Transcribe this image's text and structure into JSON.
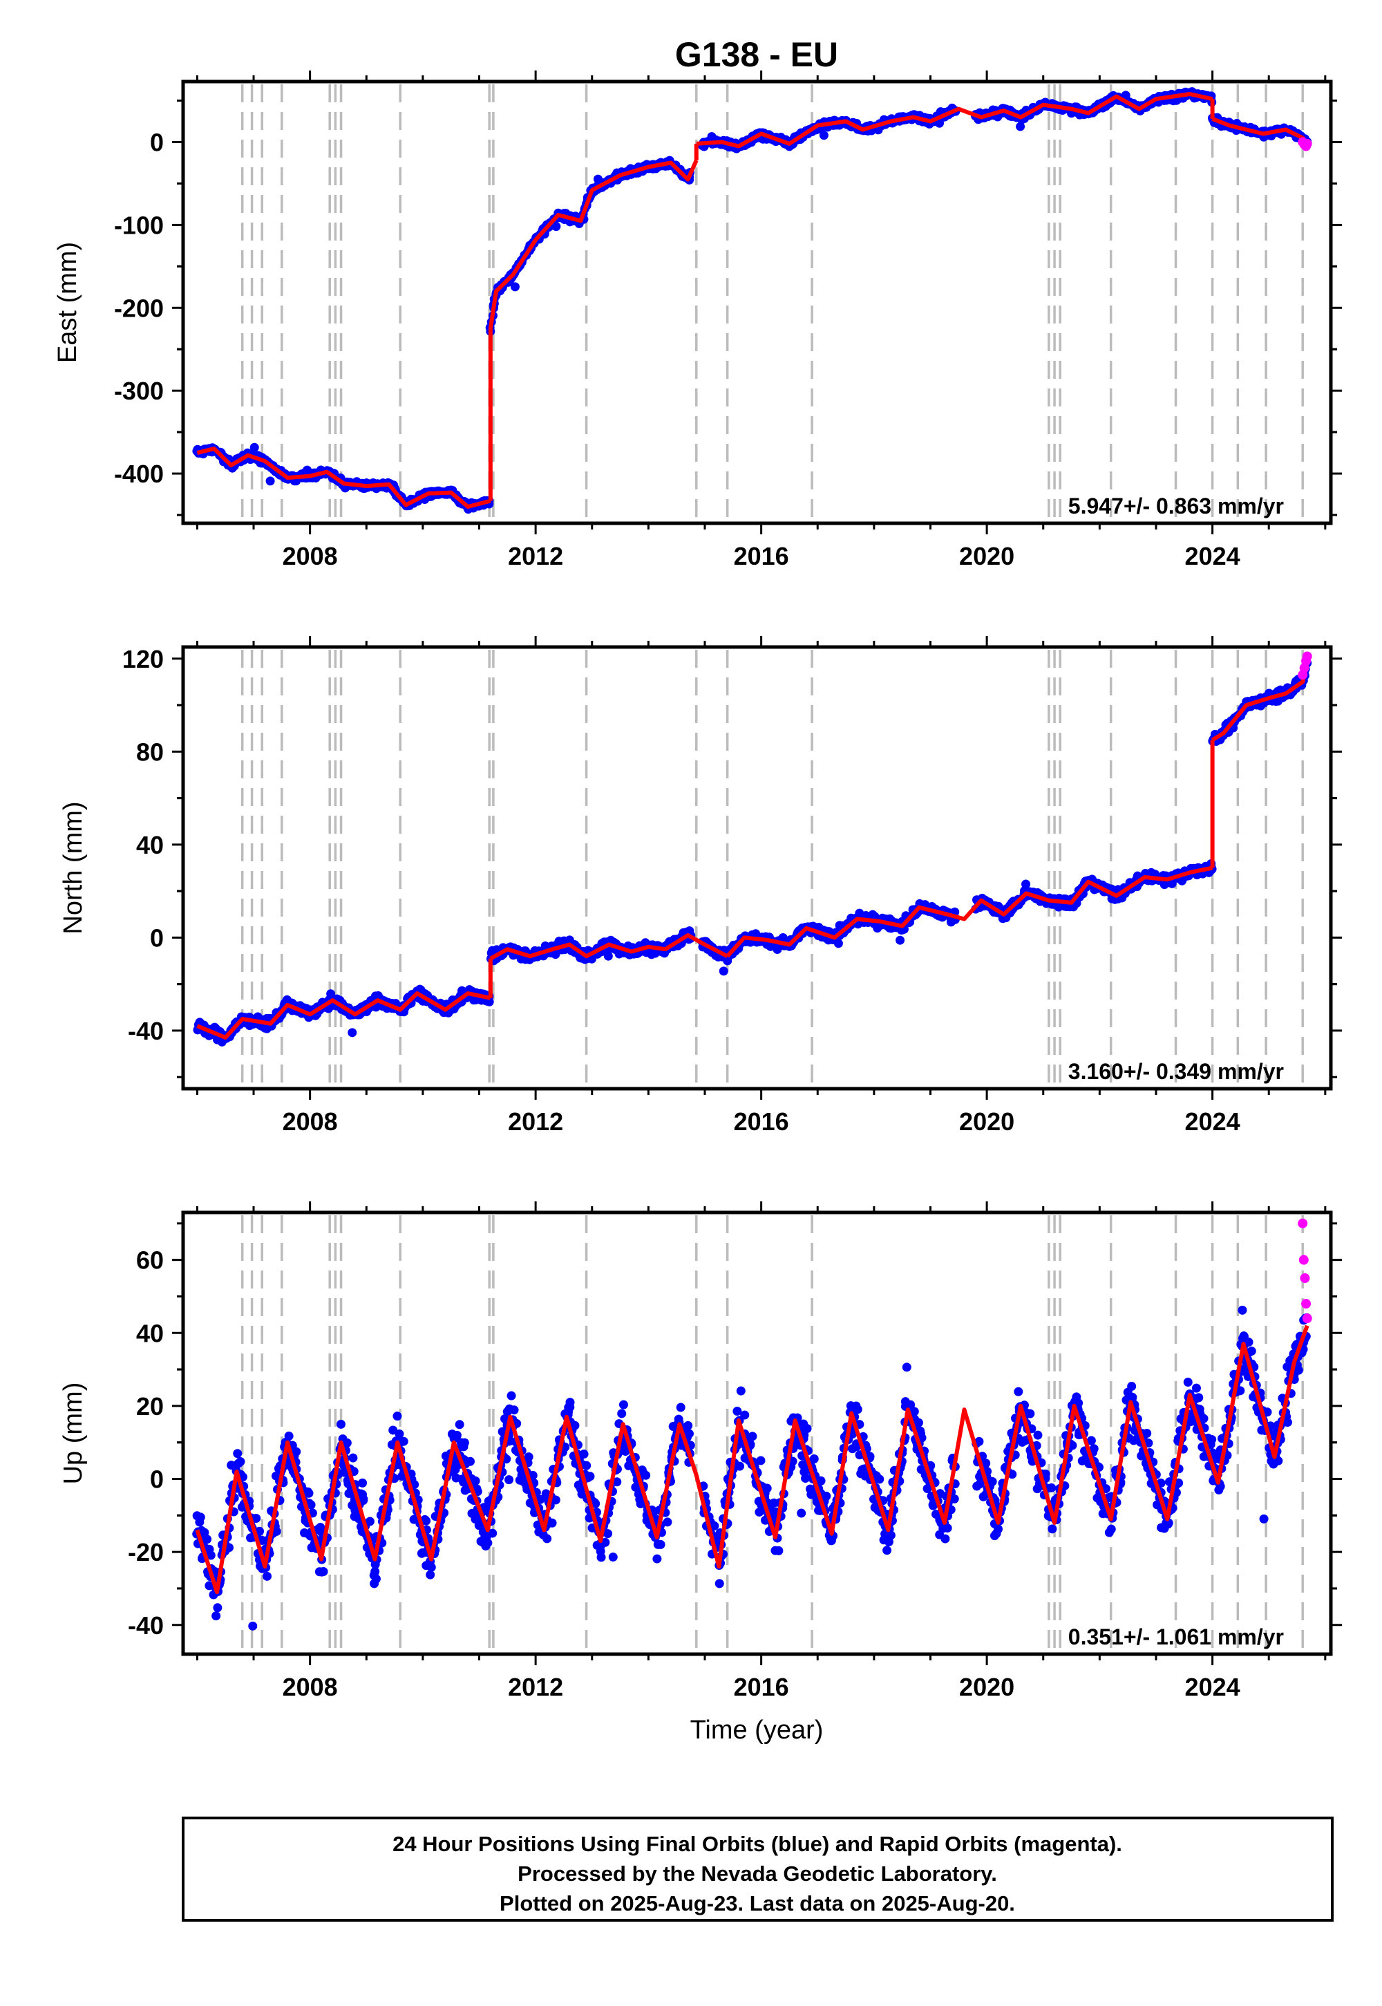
{
  "title": "G138 - EU",
  "xlabel": "Time (year)",
  "footer": {
    "lines": [
      "24 Hour Positions Using Final Orbits (blue) and Rapid Orbits (magenta).",
      "Processed by the Nevada Geodetic Laboratory.",
      "Plotted on 2025-Aug-23. Last data on 2025-Aug-20."
    ]
  },
  "colors": {
    "final_orbits": "#0000ff",
    "rapid_orbits": "#ff00ff",
    "model": "#ff0000",
    "event_lines": "#bbbbbb",
    "frame": "#000000"
  },
  "chart_data": [
    {
      "type": "scatter",
      "panel": "east",
      "title": "G138 - EU",
      "xlabel": "",
      "ylabel": "East (mm)",
      "xlim": [
        2005.75,
        2026.1
      ],
      "ylim": [
        -460,
        73
      ],
      "xticks": [
        2008,
        2012,
        2016,
        2020,
        2024
      ],
      "yticks": [
        -400,
        -300,
        -200,
        -100,
        0
      ],
      "rate_label": "5.947+/- 0.863 mm/yr",
      "event_lines": [
        2006.8,
        2006.97,
        2007.15,
        2007.5,
        2008.35,
        2008.45,
        2008.55,
        2009.6,
        2011.18,
        2011.25,
        2012.9,
        2014.85,
        2015.4,
        2016.9,
        2021.1,
        2021.2,
        2021.3,
        2022.2,
        2023.35,
        2024.0,
        2024.45,
        2024.95,
        2025.6
      ],
      "model_segments": [
        [
          [
            2006.0,
            -375
          ],
          [
            2006.3,
            -370
          ],
          [
            2006.6,
            -390
          ],
          [
            2006.9,
            -378
          ],
          [
            2007.2,
            -385
          ],
          [
            2007.6,
            -405
          ],
          [
            2008.0,
            -403
          ],
          [
            2008.3,
            -398
          ],
          [
            2008.6,
            -412
          ],
          [
            2009.0,
            -415
          ],
          [
            2009.4,
            -413
          ],
          [
            2009.7,
            -438
          ],
          [
            2010.1,
            -424
          ],
          [
            2010.5,
            -423
          ],
          [
            2010.8,
            -440
          ],
          [
            2011.2,
            -433
          ]
        ],
        [
          [
            2011.2,
            -225
          ],
          [
            2011.3,
            -180
          ],
          [
            2011.6,
            -160
          ],
          [
            2012.0,
            -118
          ],
          [
            2012.4,
            -88
          ],
          [
            2012.8,
            -95
          ],
          [
            2013.0,
            -58
          ],
          [
            2013.5,
            -40
          ],
          [
            2014.0,
            -30
          ],
          [
            2014.4,
            -25
          ],
          [
            2014.7,
            -45
          ],
          [
            2014.85,
            -22
          ]
        ],
        [
          [
            2014.85,
            -2
          ],
          [
            2015.3,
            0
          ],
          [
            2015.6,
            -5
          ],
          [
            2016.0,
            10
          ],
          [
            2016.5,
            -2
          ],
          [
            2017.0,
            20
          ],
          [
            2017.5,
            25
          ],
          [
            2017.8,
            15
          ],
          [
            2018.3,
            25
          ],
          [
            2018.7,
            30
          ],
          [
            2019.0,
            25
          ],
          [
            2019.5,
            40
          ],
          [
            2019.9,
            30
          ],
          [
            2020.3,
            38
          ],
          [
            2020.6,
            30
          ],
          [
            2021.0,
            45
          ],
          [
            2021.5,
            40
          ],
          [
            2021.8,
            35
          ],
          [
            2022.3,
            55
          ],
          [
            2022.7,
            40
          ],
          [
            2023.0,
            52
          ],
          [
            2023.6,
            58
          ],
          [
            2024.0,
            52
          ]
        ],
        [
          [
            2024.0,
            28
          ],
          [
            2024.3,
            20
          ],
          [
            2024.6,
            15
          ],
          [
            2024.9,
            10
          ],
          [
            2025.3,
            15
          ],
          [
            2025.6,
            5
          ],
          [
            2025.68,
            -2
          ]
        ]
      ],
      "rapid_points": [
        [
          2025.6,
          0
        ],
        [
          2025.63,
          -3
        ],
        [
          2025.66,
          -5
        ],
        [
          2025.68,
          -2
        ]
      ]
    },
    {
      "type": "scatter",
      "panel": "north",
      "xlabel": "",
      "ylabel": "North (mm)",
      "xlim": [
        2005.75,
        2026.1
      ],
      "ylim": [
        -65,
        125
      ],
      "xticks": [
        2008,
        2012,
        2016,
        2020,
        2024
      ],
      "yticks": [
        -40,
        0,
        40,
        80,
        120
      ],
      "rate_label": "3.160+/- 0.349 mm/yr",
      "event_lines": [
        2006.8,
        2006.97,
        2007.15,
        2007.5,
        2008.35,
        2008.45,
        2008.55,
        2009.6,
        2011.18,
        2011.25,
        2012.9,
        2014.85,
        2015.4,
        2016.9,
        2021.1,
        2021.2,
        2021.3,
        2022.2,
        2023.35,
        2024.0,
        2024.45,
        2024.95,
        2025.6
      ],
      "model_segments": [
        [
          [
            2006.0,
            -38
          ],
          [
            2006.5,
            -43
          ],
          [
            2006.8,
            -35
          ],
          [
            2007.3,
            -37
          ],
          [
            2007.6,
            -29
          ],
          [
            2008.0,
            -33
          ],
          [
            2008.4,
            -27
          ],
          [
            2008.8,
            -33
          ],
          [
            2009.2,
            -27
          ],
          [
            2009.6,
            -31
          ],
          [
            2009.9,
            -24
          ],
          [
            2010.4,
            -31
          ],
          [
            2010.8,
            -24
          ],
          [
            2011.2,
            -26
          ]
        ],
        [
          [
            2011.2,
            -9
          ],
          [
            2011.5,
            -5
          ],
          [
            2011.9,
            -8
          ],
          [
            2012.3,
            -5
          ],
          [
            2012.6,
            -3
          ],
          [
            2012.9,
            -8
          ],
          [
            2013.3,
            -3
          ],
          [
            2013.7,
            -6
          ],
          [
            2014.0,
            -4
          ],
          [
            2014.3,
            -5
          ],
          [
            2014.7,
            1
          ],
          [
            2015.0,
            -3
          ],
          [
            2015.4,
            -8
          ]
        ],
        [
          [
            2015.4,
            -8
          ],
          [
            2015.7,
            0
          ],
          [
            2016.1,
            -1
          ],
          [
            2016.5,
            -3
          ],
          [
            2016.8,
            4
          ],
          [
            2017.3,
            0
          ],
          [
            2017.7,
            8
          ],
          [
            2018.1,
            7
          ],
          [
            2018.5,
            5
          ],
          [
            2018.8,
            13
          ],
          [
            2019.3,
            10
          ],
          [
            2019.6,
            8
          ],
          [
            2019.9,
            16
          ],
          [
            2020.3,
            10
          ],
          [
            2020.7,
            19
          ],
          [
            2021.1,
            16
          ],
          [
            2021.5,
            15
          ],
          [
            2021.8,
            24
          ],
          [
            2022.3,
            18
          ],
          [
            2022.8,
            26
          ],
          [
            2023.2,
            25
          ],
          [
            2023.6,
            28
          ],
          [
            2024.0,
            30
          ]
        ],
        [
          [
            2024.0,
            85
          ],
          [
            2024.2,
            88
          ],
          [
            2024.6,
            100
          ],
          [
            2025.0,
            103
          ],
          [
            2025.3,
            105
          ],
          [
            2025.6,
            110
          ],
          [
            2025.68,
            118
          ]
        ]
      ],
      "rapid_points": [
        [
          2025.6,
          113
        ],
        [
          2025.63,
          116
        ],
        [
          2025.66,
          119
        ],
        [
          2025.68,
          121
        ]
      ]
    },
    {
      "type": "scatter",
      "panel": "up",
      "xlabel": "Time (year)",
      "ylabel": "Up (mm)",
      "xlim": [
        2005.75,
        2026.1
      ],
      "ylim": [
        -48,
        73
      ],
      "xticks": [
        2008,
        2012,
        2016,
        2020,
        2024
      ],
      "yticks": [
        -40,
        -20,
        0,
        20,
        40,
        60
      ],
      "rate_label": "0.351+/- 1.061 mm/yr",
      "event_lines": [
        2006.8,
        2006.97,
        2007.15,
        2007.5,
        2008.35,
        2008.45,
        2008.55,
        2009.6,
        2011.18,
        2011.25,
        2012.9,
        2014.85,
        2015.4,
        2016.9,
        2021.1,
        2021.2,
        2021.3,
        2022.2,
        2023.35,
        2024.0,
        2024.45,
        2024.95,
        2025.6
      ],
      "model_segments": [
        [
          [
            2006.0,
            -14
          ],
          [
            2006.35,
            -31
          ],
          [
            2006.7,
            2
          ],
          [
            2007.2,
            -24
          ],
          [
            2007.6,
            10
          ],
          [
            2008.2,
            -22
          ],
          [
            2008.55,
            10
          ],
          [
            2009.15,
            -22
          ],
          [
            2009.55,
            10
          ],
          [
            2010.15,
            -22
          ],
          [
            2010.55,
            10
          ],
          [
            2011.15,
            -14
          ],
          [
            2011.55,
            17
          ],
          [
            2012.15,
            -14
          ],
          [
            2012.55,
            17
          ],
          [
            2013.15,
            -17
          ],
          [
            2013.55,
            15
          ],
          [
            2014.15,
            -16
          ],
          [
            2014.55,
            15
          ],
          [
            2014.85,
            1
          ],
          [
            2015.25,
            -24
          ],
          [
            2015.6,
            16
          ],
          [
            2016.25,
            -16
          ],
          [
            2016.6,
            16
          ],
          [
            2017.25,
            -15
          ],
          [
            2017.6,
            18
          ],
          [
            2018.25,
            -14
          ],
          [
            2018.6,
            19
          ],
          [
            2019.25,
            -12
          ],
          [
            2019.6,
            19
          ],
          [
            2020.2,
            -12
          ],
          [
            2020.6,
            20
          ],
          [
            2021.2,
            -12
          ],
          [
            2021.55,
            20
          ],
          [
            2022.2,
            -11
          ],
          [
            2022.55,
            21
          ],
          [
            2023.2,
            -11
          ],
          [
            2023.6,
            23
          ],
          [
            2024.1,
            -1
          ],
          [
            2024.55,
            37
          ],
          [
            2025.1,
            6
          ],
          [
            2025.45,
            32
          ],
          [
            2025.68,
            42
          ]
        ]
      ],
      "rapid_points": [
        [
          2025.6,
          70
        ],
        [
          2025.62,
          60
        ],
        [
          2025.64,
          55
        ],
        [
          2025.66,
          48
        ],
        [
          2025.68,
          44
        ]
      ]
    }
  ]
}
